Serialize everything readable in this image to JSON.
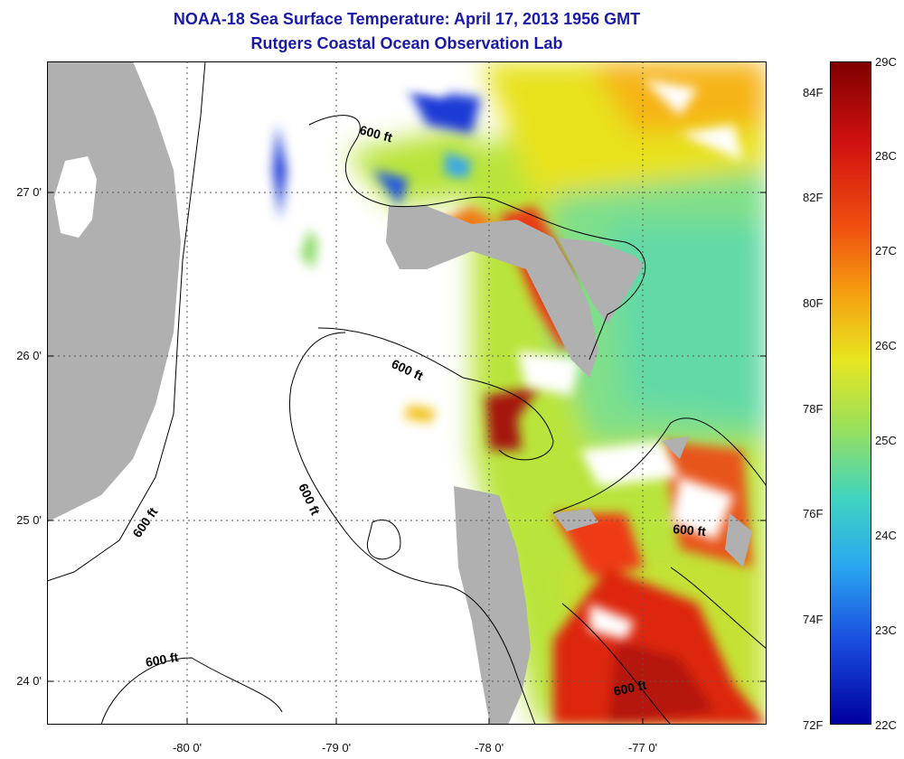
{
  "title": {
    "line1": "NOAA-18 Sea Surface Temperature:  April 17, 2013 1956 GMT",
    "line2": "Rutgers Coastal Ocean Observation Lab"
  },
  "map": {
    "longitude_ticks": [
      "-80 0'",
      "-79 0'",
      "-78 0'",
      "-77 0'"
    ],
    "latitude_ticks": [
      "27 0'",
      "26 0'",
      "25 0'",
      "24 0'"
    ],
    "contour_labels": [
      "600 ft",
      "600 ft",
      "600 ft",
      "600 ft",
      "600 ft",
      "600 ft",
      "600 ft"
    ],
    "colors": {
      "land": "#b0b0b0",
      "cloud": "#ffffff",
      "grid": "#555555"
    }
  },
  "colorbar": {
    "fahrenheit_labels": [
      "84F",
      "82F",
      "80F",
      "78F",
      "76F",
      "74F",
      "72F"
    ],
    "celsius_labels": [
      "29C",
      "28C",
      "27C",
      "26C",
      "25C",
      "24C",
      "23C",
      "22C"
    ],
    "min_c": 22,
    "max_c": 29
  }
}
